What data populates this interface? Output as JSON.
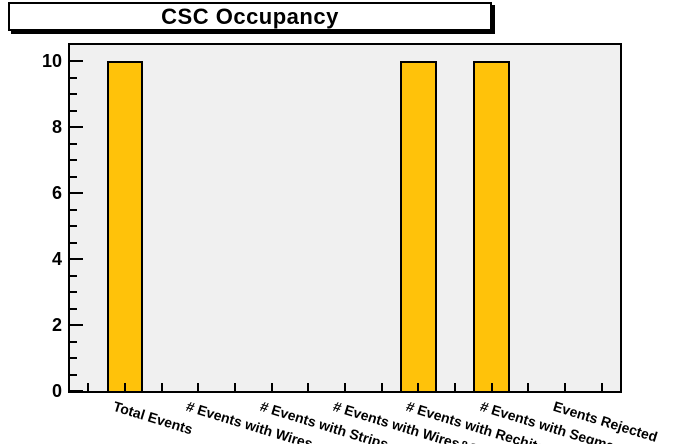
{
  "chart_data": {
    "type": "bar",
    "title": "CSC Occupancy",
    "categories": [
      "Total Events",
      "# Events with Wires",
      "# Events with Strips",
      "# Events with Wires&Strips",
      "# Events with Rechits",
      "# Events with Segments",
      "Events Rejected"
    ],
    "values": [
      10,
      0,
      0,
      0,
      10,
      10,
      0
    ],
    "xlabel": "",
    "ylabel": "",
    "ylim": [
      0,
      10.5
    ],
    "yticks": [
      0,
      2,
      4,
      6,
      8,
      10
    ],
    "y_minor_tick_step": 0.5,
    "grid": false,
    "legend": false,
    "x_label_rotation_deg": 17,
    "colors": {
      "bar_fill": "#FFC20A",
      "bar_border": "#000000",
      "frame_background": "#F0F0F0",
      "axis": "#000000",
      "canvas_background": "#FFFFFF",
      "title_background": "#FFFFFF",
      "title_border": "#000000"
    },
    "layout": {
      "total_bins": 15,
      "category_bins": [
        2,
        4,
        6,
        8,
        10,
        12,
        14
      ],
      "ticks_at_bin_centers": true
    }
  }
}
